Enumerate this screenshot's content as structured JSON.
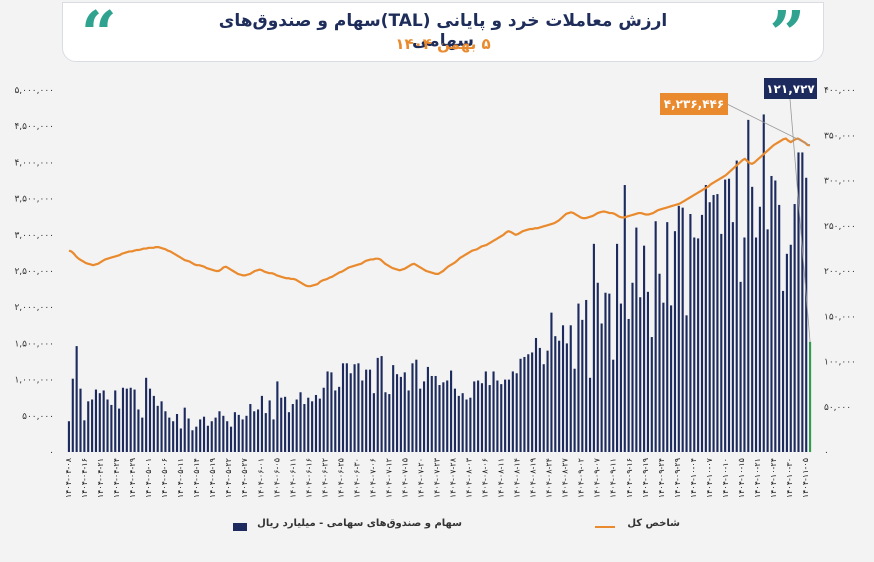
{
  "header": {
    "title": "ارزش معاملات خرد و پایانی (TAL)سهام و صندوق‌های سهامی",
    "subtitle": "۵ بهمن ۱۴۰۴",
    "quote_open": "“",
    "quote_close": "”"
  },
  "colors": {
    "bars": "#1c2a5e",
    "last_bar": "#2e9e4b",
    "line": "#e98a2e",
    "accent": "#2fa38f",
    "callout_bar": "#1c2a5e",
    "callout_line": "#e98a2e"
  },
  "chart_data": {
    "type": "bar+line",
    "series": [
      {
        "name": "سهام و صندوق‌های سهامی - میلیارد ریال",
        "type": "bar",
        "axis": "right",
        "values": [
          34000,
          81000,
          117000,
          70000,
          35000,
          56000,
          58000,
          69000,
          65000,
          68000,
          58000,
          52000,
          68000,
          48000,
          71000,
          70000,
          71000,
          69000,
          47000,
          38000,
          82000,
          70000,
          62000,
          51000,
          56000,
          45000,
          38000,
          34000,
          42000,
          26000,
          49000,
          37000,
          24000,
          28000,
          36000,
          39000,
          29000,
          34000,
          38000,
          45000,
          40000,
          34000,
          28000,
          44000,
          41000,
          36000,
          40000,
          53000,
          45000,
          47000,
          62000,
          43000,
          57000,
          36000,
          78000,
          60000,
          61000,
          44000,
          53000,
          58000,
          66000,
          53000,
          60000,
          56000,
          63000,
          59000,
          71000,
          89000,
          88000,
          68000,
          72000,
          98000,
          98000,
          87000,
          97000,
          98000,
          79000,
          91000,
          91000,
          65000,
          104000,
          106000,
          66000,
          64000,
          96000,
          86000,
          83000,
          88000,
          68000,
          98000,
          102000,
          70000,
          78000,
          94000,
          84000,
          84000,
          74000,
          77000,
          79000,
          90000,
          70000,
          62000,
          65000,
          58000,
          60000,
          78000,
          79000,
          76000,
          89000,
          74000,
          89000,
          79000,
          75000,
          80000,
          80000,
          89000,
          87000,
          103000,
          105000,
          108000,
          110000,
          126000,
          115000,
          97000,
          112000,
          154000,
          128000,
          123000,
          140000,
          120000,
          140000,
          92000,
          164000,
          146000,
          168000,
          82000,
          230000,
          187000,
          142000,
          176000,
          175000,
          102000,
          230000,
          164000,
          295000,
          147000,
          187000,
          248000,
          171000,
          228000,
          177000,
          127000,
          255000,
          197000,
          165000,
          254000,
          162000,
          244000,
          272000,
          270000,
          151000,
          263000,
          237000,
          236000,
          262000,
          295000,
          276000,
          284000,
          285000,
          241000,
          301000,
          302000,
          254000,
          322000,
          188000,
          237000,
          367000,
          293000,
          237000,
          271000,
          373000,
          246000,
          305000,
          300000,
          273000,
          178000,
          219000,
          229000,
          274000,
          331000,
          331000,
          303000,
          121727
        ],
        "last_value_label": "۱۲۱,۷۲۷"
      },
      {
        "name": "شاخص کل",
        "type": "line",
        "axis": "left",
        "values": [
          2780000,
          2770000,
          2740000,
          2700000,
          2670000,
          2650000,
          2630000,
          2610000,
          2600000,
          2590000,
          2580000,
          2590000,
          2600000,
          2620000,
          2640000,
          2660000,
          2670000,
          2680000,
          2690000,
          2700000,
          2710000,
          2720000,
          2740000,
          2750000,
          2760000,
          2770000,
          2770000,
          2780000,
          2790000,
          2790000,
          2800000,
          2810000,
          2810000,
          2820000,
          2820000,
          2820000,
          2830000,
          2830000,
          2820000,
          2810000,
          2800000,
          2780000,
          2770000,
          2750000,
          2730000,
          2710000,
          2690000,
          2670000,
          2650000,
          2640000,
          2630000,
          2610000,
          2590000,
          2580000,
          2580000,
          2570000,
          2560000,
          2540000,
          2530000,
          2520000,
          2510000,
          2500000,
          2500000,
          2520000,
          2550000,
          2560000,
          2540000,
          2520000,
          2500000,
          2480000,
          2460000,
          2450000,
          2440000,
          2440000,
          2450000,
          2460000,
          2480000,
          2500000,
          2510000,
          2520000,
          2510000,
          2490000,
          2480000,
          2470000,
          2470000,
          2460000,
          2440000,
          2430000,
          2420000,
          2410000,
          2400000,
          2400000,
          2390000,
          2390000,
          2380000,
          2360000,
          2340000,
          2320000,
          2300000,
          2290000,
          2290000,
          2300000,
          2310000,
          2320000,
          2350000,
          2370000,
          2380000,
          2390000,
          2410000,
          2420000,
          2440000,
          2460000,
          2480000,
          2490000,
          2510000,
          2530000,
          2550000,
          2560000,
          2570000,
          2580000,
          2590000,
          2600000,
          2620000,
          2640000,
          2650000,
          2660000,
          2660000,
          2670000,
          2670000,
          2660000,
          2630000,
          2600000,
          2580000,
          2560000,
          2540000,
          2530000,
          2520000,
          2510000,
          2520000,
          2530000,
          2550000,
          2570000,
          2590000,
          2600000,
          2580000,
          2560000,
          2540000,
          2520000,
          2500000,
          2490000,
          2480000,
          2470000,
          2460000,
          2460000,
          2480000,
          2500000,
          2530000,
          2560000,
          2580000,
          2600000,
          2620000,
          2650000,
          2680000,
          2700000,
          2720000,
          2740000,
          2760000,
          2780000,
          2790000,
          2800000,
          2820000,
          2840000,
          2850000,
          2860000,
          2880000,
          2900000,
          2920000,
          2940000,
          2960000,
          2980000,
          3000000,
          3030000,
          3050000,
          3040000,
          3020000,
          3000000,
          3010000,
          3030000,
          3050000,
          3060000,
          3070000,
          3080000,
          3080000,
          3090000,
          3090000,
          3100000,
          3110000,
          3120000,
          3130000,
          3140000,
          3150000,
          3160000,
          3180000,
          3200000,
          3230000,
          3260000,
          3290000,
          3300000,
          3310000,
          3300000,
          3280000,
          3260000,
          3240000,
          3230000,
          3230000,
          3240000,
          3250000,
          3260000,
          3280000,
          3300000,
          3310000,
          3320000,
          3320000,
          3310000,
          3300000,
          3300000,
          3290000,
          3270000,
          3250000,
          3240000,
          3240000,
          3250000,
          3260000,
          3270000,
          3280000,
          3290000,
          3300000,
          3300000,
          3290000,
          3280000,
          3280000,
          3290000,
          3300000,
          3320000,
          3340000,
          3350000,
          3360000,
          3370000,
          3380000,
          3390000,
          3400000,
          3410000,
          3420000,
          3430000,
          3450000,
          3470000,
          3490000,
          3510000,
          3530000,
          3550000,
          3570000,
          3590000,
          3610000,
          3630000,
          3650000,
          3670000,
          3700000,
          3720000,
          3740000,
          3760000,
          3780000,
          3800000,
          3820000,
          3850000,
          3880000,
          3910000,
          3940000,
          3970000,
          4000000,
          4030000,
          4050000,
          4020000,
          3990000,
          3980000,
          4000000,
          4030000,
          4060000,
          4090000,
          4120000,
          4150000,
          4180000,
          4210000,
          4240000,
          4260000,
          4280000,
          4300000,
          4320000,
          4330000,
          4300000,
          4280000,
          4300000,
          4320000,
          4330000,
          4310000,
          4290000,
          4270000,
          4240000,
          4236446
        ],
        "last_value_label": "۴,۲۳۶,۴۴۶"
      }
    ],
    "left_axis": {
      "ylim": [
        0,
        5000000
      ],
      "ticks": [
        0,
        500000,
        1000000,
        1500000,
        2000000,
        2500000,
        3000000,
        3500000,
        4000000,
        4500000,
        5000000
      ],
      "tick_labels": [
        "۰",
        "۵۰۰,۰۰۰",
        "۱,۰۰۰,۰۰۰",
        "۱,۵۰۰,۰۰۰",
        "۲,۰۰۰,۰۰۰",
        "۲,۵۰۰,۰۰۰",
        "۳,۰۰۰,۰۰۰",
        "۳,۵۰۰,۰۰۰",
        "۴,۰۰۰,۰۰۰",
        "۴,۵۰۰,۰۰۰",
        "۵,۰۰۰,۰۰۰"
      ]
    },
    "right_axis": {
      "ylim": [
        0,
        400000
      ],
      "ticks": [
        0,
        50000,
        100000,
        150000,
        200000,
        250000,
        300000,
        350000,
        400000
      ],
      "tick_labels": [
        "۰",
        "۵۰,۰۰۰",
        "۱۰۰,۰۰۰",
        "۱۵۰,۰۰۰",
        "۲۰۰,۰۰۰",
        "۲۵۰,۰۰۰",
        "۳۰۰,۰۰۰",
        "۳۵۰,۰۰۰",
        "۴۰۰,۰۰۰"
      ]
    },
    "x_tick_labels": [
      "۱۴۰۴-۰۴-۰۸",
      "۱۴۰۴-۰۴-۱۶",
      "۱۴۰۴-۰۴-۲۱",
      "۱۴۰۴-۰۴-۲۴",
      "۱۴۰۴-۰۴-۲۹",
      "۱۴۰۴-۰۵-۰۱",
      "۱۴۰۴-۰۵-۰۶",
      "۱۴۰۴-۰۵-۱۱",
      "۱۴۰۴-۰۵-۱۴",
      "۱۴۰۴-۰۵-۱۹",
      "۱۴۰۴-۰۵-۲۲",
      "۱۴۰۴-۰۵-۲۷",
      "۱۴۰۴-۰۶-۰۱",
      "۱۴۰۴-۰۶-۰۵",
      "۱۴۰۴-۰۶-۱۱",
      "۱۴۰۴-۰۶-۱۶",
      "۱۴۰۴-۰۶-۲۲",
      "۱۴۰۴-۰۶-۲۵",
      "۱۴۰۴-۰۶-۳۰",
      "۱۴۰۴-۰۷-۰۶",
      "۱۴۰۴-۰۷-۱۲",
      "۱۴۰۴-۰۷-۱۵",
      "۱۴۰۴-۰۷-۲۰",
      "۱۴۰۴-۰۷-۲۳",
      "۱۴۰۴-۰۷-۲۸",
      "۱۴۰۴-۰۸-۰۳",
      "۱۴۰۴-۰۸-۰۶",
      "۱۴۰۴-۰۸-۱۱",
      "۱۴۰۴-۰۸-۱۴",
      "۱۴۰۴-۰۸-۱۹",
      "۱۴۰۴-۰۸-۲۴",
      "۱۴۰۴-۰۸-۲۷",
      "۱۴۰۴-۰۹-۰۲",
      "۱۴۰۴-۰۹-۰۷",
      "۱۴۰۴-۰۹-۱۱",
      "۱۴۰۴-۰۹-۱۶",
      "۱۴۰۴-۰۹-۱۹",
      "۱۴۰۴-۰۹-۲۴",
      "۱۴۰۴-۰۹-۲۹",
      "۱۴۰۴-۱۰-۰۴",
      "۱۴۰۴-۱۰-۰۷",
      "۱۴۰۴-۱۰-۱۰",
      "۱۴۰۴-۱۰-۱۵",
      "۱۴۰۴-۱۰-۲۱",
      "۱۴۰۴-۱۰-۲۴",
      "۱۴۰۴-۱۰-۳۰",
      "۱۴۰۴-۱۱-۰۵"
    ],
    "legend": [
      {
        "label": "سهام و صندوق‌های سهامی - میلیارد ریال",
        "kind": "bar"
      },
      {
        "label": "شاخص کل",
        "kind": "line"
      }
    ],
    "grid": false,
    "legend_position": "bottom"
  }
}
